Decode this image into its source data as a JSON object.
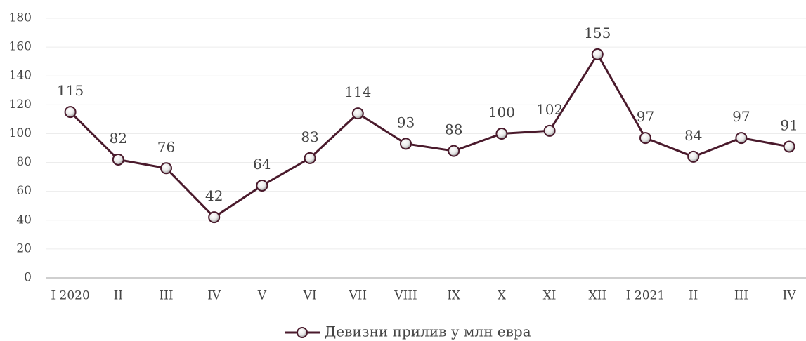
{
  "chart_data": {
    "type": "line",
    "categories": [
      "I 2020",
      "II",
      "III",
      "IV",
      "V",
      "VI",
      "VII",
      "VIII",
      "IX",
      "X",
      "XI",
      "XII",
      "I 2021",
      "II",
      "III",
      "IV"
    ],
    "series": [
      {
        "name": "Девизни прилив у млн евра",
        "color": "#4a1a2c",
        "values": [
          115,
          82,
          76,
          42,
          64,
          83,
          114,
          93,
          88,
          100,
          102,
          155,
          97,
          84,
          97,
          91
        ]
      }
    ],
    "ylim": [
      0,
      180
    ],
    "yticks": [
      0,
      20,
      40,
      60,
      80,
      100,
      120,
      140,
      160,
      180
    ],
    "grid": true,
    "legend": "bottom"
  }
}
